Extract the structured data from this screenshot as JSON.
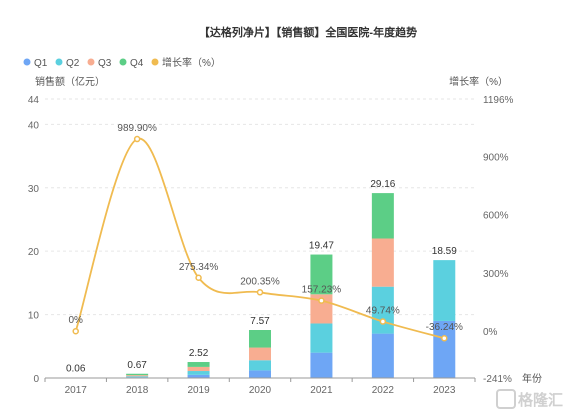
{
  "chart_data": {
    "type": "bar",
    "title": "【达格列净片】【销售额】全国医院-年度趋势",
    "ylabel": "销售额（亿元）",
    "y2label": "增长率（%）",
    "xlabel": "年份",
    "categories": [
      "2017",
      "2018",
      "2019",
      "2020",
      "2021",
      "2022",
      "2023"
    ],
    "ylim": [
      0,
      44
    ],
    "y_ticks": [
      "0",
      "10",
      "20",
      "30",
      "40",
      "44"
    ],
    "y2lim": [
      -241,
      1196
    ],
    "y2_ticks": [
      "-241%",
      "0%",
      "300%",
      "600%",
      "900%",
      "1196%"
    ],
    "stacked": true,
    "series": [
      {
        "name": "Q1",
        "color": "#6ea6f5",
        "values": [
          0.01,
          0.12,
          0.5,
          1.2,
          4.0,
          7.0,
          9.0
        ]
      },
      {
        "name": "Q2",
        "color": "#5bd0df",
        "values": [
          0.01,
          0.15,
          0.6,
          1.6,
          4.6,
          7.4,
          9.59
        ]
      },
      {
        "name": "Q3",
        "color": "#f8ad91",
        "values": [
          0.02,
          0.18,
          0.65,
          2.0,
          4.6,
          7.6,
          0
        ]
      },
      {
        "name": "Q4",
        "color": "#5cce86",
        "values": [
          0.02,
          0.22,
          0.77,
          2.77,
          6.27,
          7.16,
          0
        ]
      }
    ],
    "totals": [
      0.06,
      0.67,
      2.52,
      7.57,
      19.47,
      29.16,
      18.59
    ],
    "total_labels": [
      "0.06",
      "0.67",
      "2.52",
      "7.57",
      "19.47",
      "29.16",
      "18.59"
    ],
    "growth": {
      "name": "增长率（%）",
      "color": "#f0bb50",
      "values": [
        0,
        989.9,
        275.34,
        200.35,
        157.23,
        49.74,
        -36.24
      ],
      "labels": [
        "0%",
        "989.90%",
        "275.34%",
        "200.35%",
        "157.23%",
        "49.74%",
        "-36.24%"
      ]
    },
    "grid": true,
    "legend_position": "top-left"
  },
  "watermark": "格隆汇"
}
